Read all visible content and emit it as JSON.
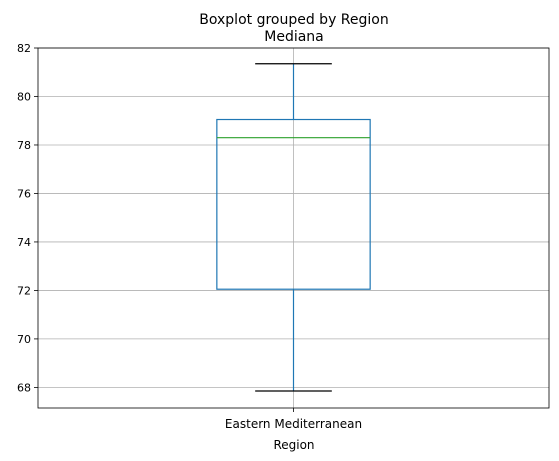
{
  "chart_data": {
    "type": "box",
    "suptitle": "Boxplot grouped by Region",
    "title": "Mediana",
    "xlabel": "Region",
    "ylabel": "",
    "categories": [
      "Eastern Mediterranean"
    ],
    "boxes": [
      {
        "category": "Eastern Mediterranean",
        "whisker_low": 67.85,
        "q1": 72.05,
        "median": 78.3,
        "q3": 79.05,
        "whisker_high": 81.35
      }
    ],
    "ylim": [
      67.15,
      82.0
    ],
    "yticks": [
      68,
      70,
      72,
      74,
      76,
      78,
      80,
      82
    ],
    "grid": true,
    "colors": {
      "box": "#1f77b4",
      "median": "#2ca02c",
      "whisker": "#1f77b4",
      "cap": "#000000",
      "grid": "#b0b0b0",
      "axis": "#000000"
    }
  }
}
